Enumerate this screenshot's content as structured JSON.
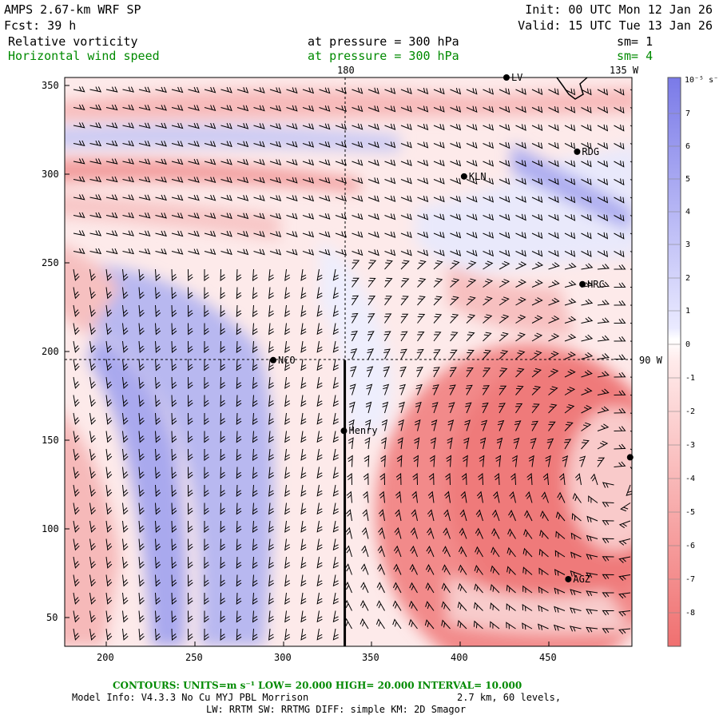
{
  "header": {
    "model_title": "AMPS 2.67-km WRF SP",
    "init": "Init: 00 UTC Mon 12 Jan 26",
    "forecast": "Fcst:   39 h",
    "valid": "Valid: 15 UTC Tue 13 Jan 26",
    "field1": {
      "name": "Relative vorticity",
      "level": "at pressure =  300 hPa",
      "smooth": "sm= 1",
      "color": "#000000"
    },
    "field2": {
      "name": "Horizontal wind speed",
      "level": "at pressure =  300 hPa",
      "smooth": "sm= 4",
      "color": "#008a00"
    }
  },
  "map": {
    "x_ticks": [
      "200",
      "250",
      "300",
      "350",
      "400",
      "450"
    ],
    "y_ticks": [
      "350",
      "300",
      "250",
      "200",
      "150",
      "100",
      "50"
    ],
    "x_range": [
      175,
      496
    ],
    "y_range": [
      33,
      355
    ],
    "lon_labels": [
      {
        "text": "180",
        "value": -180
      },
      {
        "text": "135 W",
        "value": -135
      }
    ],
    "lat_label": {
      "text": "90 W",
      "value": -90
    },
    "reference_lines": {
      "meridian_180_x": 332.5,
      "lat_line_y": 195
    },
    "stations": [
      {
        "name": "LV",
        "x": 425,
        "y": 355
      },
      {
        "name": "RDG",
        "x": 465,
        "y": 313
      },
      {
        "name": "KLN",
        "x": 401,
        "y": 299
      },
      {
        "name": "HRC",
        "x": 468,
        "y": 238
      },
      {
        "name": "NCO",
        "x": 293,
        "y": 195
      },
      {
        "name": "Henry",
        "x": 333,
        "y": 155
      },
      {
        "name": "",
        "x": 495,
        "y": 140
      },
      {
        "name": "AGZ",
        "x": 460,
        "y": 71
      }
    ],
    "transect": {
      "x": 333.5,
      "y_start": 195,
      "y_end": 33
    },
    "colors": {
      "positive": "#6f6fe8",
      "negative": "#f07070",
      "neutral": "#ffffff"
    }
  },
  "colorbar": {
    "unit": "10⁻⁵ s⁻¹",
    "levels": [
      "7",
      "6",
      "5",
      "4",
      "3",
      "2",
      "1",
      "0",
      "-1",
      "-2",
      "-3",
      "-4",
      "-5",
      "-6",
      "-7",
      "-8"
    ]
  },
  "footer": {
    "contours": "CONTOURS:  UNITS=m s⁻¹  LOW=  20.000     HIGH=  20.000     INTERVAL=   10.000",
    "model_info": "Model Info: V4.3.3    No Cu   MYJ PBL  Morrison",
    "grid_info": "2.7 km,  60 levels,",
    "physics": "LW: RRTM SW: RRTMG   DIFF: simple KM: 2D Smagor"
  }
}
